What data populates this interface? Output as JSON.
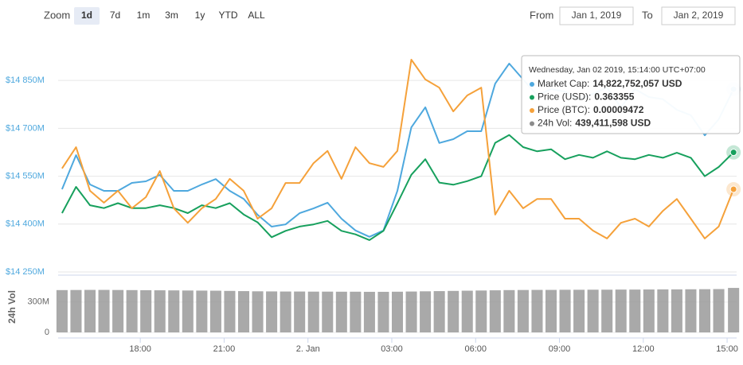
{
  "controls": {
    "zoom_label": "Zoom",
    "buttons": [
      "1d",
      "7d",
      "1m",
      "3m",
      "1y",
      "YTD",
      "ALL"
    ],
    "selected": 0,
    "from_label": "From",
    "from": "Jan 1, 2019",
    "to_label": "To",
    "to": "Jan 2, 2019"
  },
  "chart_data": {
    "type": "line",
    "x": [
      15.2,
      15.7,
      16.2,
      16.7,
      17.2,
      17.7,
      18.2,
      18.7,
      19.2,
      19.7,
      20.2,
      20.7,
      21.2,
      21.7,
      22.2,
      22.7,
      23.2,
      23.7,
      24.2,
      24.7,
      25.2,
      25.7,
      26.2,
      26.7,
      27.2,
      27.7,
      28.2,
      28.7,
      29.2,
      29.7,
      30.2,
      30.7,
      31.2,
      31.7,
      32.2,
      32.7,
      33.2,
      33.7,
      34.2,
      34.7,
      35.2,
      35.7,
      36.2,
      36.7,
      37.2,
      37.7,
      38.2,
      38.7,
      39.23
    ],
    "xlim": [
      15.06,
      39.34
    ],
    "xticks": [
      {
        "value": 18,
        "label": "18:00"
      },
      {
        "value": 21,
        "label": "21:00"
      },
      {
        "value": 24,
        "label": "2. Jan"
      },
      {
        "value": 27,
        "label": "03:00"
      },
      {
        "value": 30,
        "label": "06:00"
      },
      {
        "value": 33,
        "label": "09:00"
      },
      {
        "value": 36,
        "label": "12:00"
      },
      {
        "value": 39,
        "label": "15:00"
      }
    ],
    "ylim": [
      14250,
      14950
    ],
    "yticks": [
      {
        "value": 14250,
        "label": "$14 250M"
      },
      {
        "value": 14400,
        "label": "$14 400M"
      },
      {
        "value": 14550,
        "label": "$14 550M"
      },
      {
        "value": 14700,
        "label": "$14 700M"
      },
      {
        "value": 14850,
        "label": "$14 850M"
      }
    ],
    "grid": true,
    "y2label": "24h Vol",
    "y2lim": [
      0,
      440
    ],
    "y2ticks": [
      0,
      {
        "value": 300,
        "label": "300M"
      }
    ],
    "y3lim": [
      0.3465,
      0.378
    ],
    "y4lim": [
      9.25e-05,
      9.85e-05
    ],
    "series": [
      {
        "name": "Market Cap",
        "color": "#4ea8de",
        "values": [
          14509,
          14616,
          14524,
          14504,
          14504,
          14529,
          14534,
          14554,
          14504,
          14504,
          14524,
          14541,
          14504,
          14479,
          14429,
          14392,
          14399,
          14434,
          14449,
          14467,
          14417,
          14380,
          14360,
          14380,
          14504,
          14703,
          14766,
          14654,
          14666,
          14691,
          14691,
          14840,
          14903,
          14853,
          14803,
          14823,
          14815,
          14791,
          14808,
          14828,
          14766,
          14823,
          14798,
          14791,
          14758,
          14741,
          14678,
          14728,
          14822.752057
        ]
      },
      {
        "name": "Price (USD)",
        "color": "#17a05d",
        "axis": "y3",
        "values": [
          0.3548,
          0.3585,
          0.3559,
          0.3555,
          0.3562,
          0.3555,
          0.3555,
          0.3559,
          0.3555,
          0.3548,
          0.3559,
          0.3555,
          0.3562,
          0.3546,
          0.3535,
          0.3514,
          0.3523,
          0.3529,
          0.3532,
          0.3537,
          0.3523,
          0.3518,
          0.351,
          0.3523,
          0.3562,
          0.3602,
          0.3624,
          0.3591,
          0.3588,
          0.3593,
          0.36,
          0.3647,
          0.3658,
          0.3641,
          0.3635,
          0.3638,
          0.3624,
          0.363,
          0.3626,
          0.3635,
          0.3626,
          0.3624,
          0.363,
          0.3626,
          0.3633,
          0.3626,
          0.36,
          0.3613,
          0.363355
        ]
      },
      {
        "name": "Price (BTC)",
        "color": "#f5a13a",
        "axis": "y4",
        "values": [
          9.528e-05,
          9.585e-05,
          9.468e-05,
          9.436e-05,
          9.468e-05,
          9.421e-05,
          9.451e-05,
          9.521e-05,
          9.421e-05,
          9.382e-05,
          9.421e-05,
          9.446e-05,
          9.5e-05,
          9.468e-05,
          9.393e-05,
          9.421e-05,
          9.489e-05,
          9.489e-05,
          9.542e-05,
          9.575e-05,
          9.5e-05,
          9.585e-05,
          9.542e-05,
          9.532e-05,
          9.575e-05,
          9.82e-05,
          9.767e-05,
          9.745e-05,
          9.681e-05,
          9.724e-05,
          9.745e-05,
          9.404e-05,
          9.468e-05,
          9.421e-05,
          9.446e-05,
          9.446e-05,
          9.393e-05,
          9.393e-05,
          9.361e-05,
          9.34e-05,
          9.382e-05,
          9.393e-05,
          9.372e-05,
          9.414e-05,
          9.446e-05,
          9.393e-05,
          9.34e-05,
          9.372e-05,
          9.472e-05
        ]
      },
      {
        "name": "24h Vol",
        "color": "#8c8c8c",
        "axis": "y2",
        "type": "column",
        "values": [
          418,
          419,
          420,
          420,
          419,
          418,
          417,
          416,
          415,
          414,
          413,
          412,
          410,
          408,
          406,
          405,
          404,
          404,
          403,
          403,
          402,
          402,
          401,
          401,
          402,
          404,
          406,
          408,
          410,
          412,
          414,
          416,
          418,
          419,
          420,
          420,
          421,
          421,
          422,
          422,
          423,
          423,
          424,
          425,
          425,
          426,
          427,
          428,
          439.411598
        ]
      }
    ],
    "tooltip": {
      "title": "Wednesday, Jan 02 2019, 15:14:00 UTC+07:00",
      "items": [
        {
          "label": "Market Cap:",
          "value": "14,822,752,057 USD"
        },
        {
          "label": "Price (USD):",
          "value": "0.363355"
        },
        {
          "label": "Price (BTC):",
          "value": "0.00009472"
        },
        {
          "label": "24h Vol:",
          "value": "439,411,598 USD"
        }
      ]
    }
  }
}
